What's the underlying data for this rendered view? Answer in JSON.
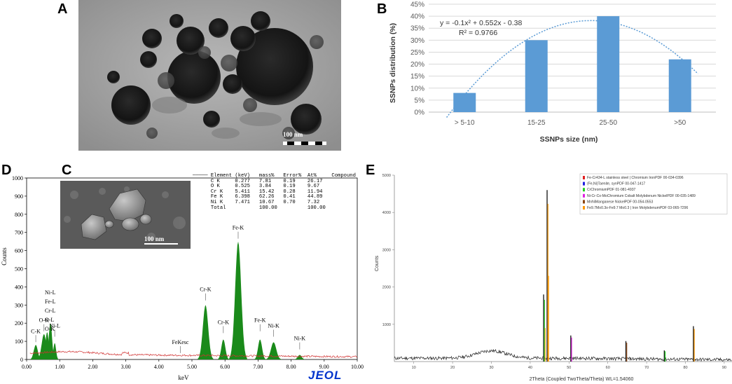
{
  "panels": {
    "a": "A",
    "b": "B",
    "c": "C",
    "d": "D",
    "e": "E"
  },
  "tem": {
    "scale_label": "100 nm"
  },
  "sem": {
    "scale_label": "100 nm"
  },
  "chart_data": [
    {
      "type": "bar",
      "panel": "B",
      "categories": [
        "> 5-10",
        "15-25",
        "25-50",
        ">50"
      ],
      "values": [
        8,
        30,
        40,
        22
      ],
      "ylabel": "SSNPs distribution (%)",
      "xlabel": "SSNPs size (nm)",
      "ylim": [
        0,
        45
      ],
      "yticks": [
        "0%",
        "5%",
        "10%",
        "15%",
        "20%",
        "25%",
        "30%",
        "35%",
        "40%",
        "45%"
      ],
      "trendline": {
        "equation": "y = -0.1x² + 0.552x - 0.38",
        "r2": "R² = 0.9766",
        "coefficients": [
          -0.1,
          0.552,
          -0.38
        ]
      },
      "grid": true,
      "bar_color": "#5b9bd5"
    },
    {
      "type": "line",
      "panel": "D",
      "xlabel": "keV",
      "ylabel": "Counts",
      "xlim": [
        0,
        10
      ],
      "ylim": [
        0,
        1000
      ],
      "xticks": [
        "0.00",
        "1.00",
        "2.00",
        "3.00",
        "4.00",
        "5.00",
        "6.00",
        "7.00",
        "8.00",
        "9.00",
        "10.00"
      ],
      "yticks": [
        "0",
        "100",
        "200",
        "300",
        "400",
        "500",
        "600",
        "700",
        "800",
        "900",
        "1000"
      ],
      "peaks": [
        {
          "label": "C-K",
          "x": 0.277,
          "y": 80
        },
        {
          "label": "O-K",
          "x": 0.525,
          "y": 140
        },
        {
          "label": "Ni-L",
          "x": 0.85,
          "y": 110
        },
        {
          "label": "Fe-K",
          "x": 6.398,
          "y": 650
        },
        {
          "label": "Cr-K",
          "x": 5.411,
          "y": 310
        },
        {
          "label": "Cr-K",
          "x": 5.95,
          "y": 130
        },
        {
          "label": "Fe-K",
          "x": 7.06,
          "y": 140
        },
        {
          "label": "Ni-K",
          "x": 7.47,
          "y": 110
        },
        {
          "label": "Ni-K",
          "x": 8.26,
          "y": 40
        },
        {
          "label": "FeKesc",
          "x": 4.65,
          "y": 20
        }
      ],
      "low_energy_stack_labels": [
        "Ni-L",
        "Fe-L",
        "Cr-L",
        "O-L",
        "O-K"
      ],
      "table": {
        "header": [
          "Element",
          "(keV)",
          "mass%",
          "Error%",
          "At%",
          "Compound"
        ],
        "rows": [
          [
            "C K",
            "0.277",
            "7.81",
            "0.19",
            "26.17",
            ""
          ],
          [
            "O K",
            "0.525",
            "3.84",
            "0.19",
            "9.67",
            ""
          ],
          [
            "Cr K",
            "5.411",
            "15.42",
            "0.28",
            "11.94",
            ""
          ],
          [
            "Fe K",
            "6.398",
            "62.26",
            "0.41",
            "44.89",
            ""
          ],
          [
            "Ni K",
            "7.471",
            "10.67",
            "0.70",
            "7.32",
            ""
          ],
          [
            "Total",
            "",
            "100.00",
            "",
            "100.00",
            ""
          ]
        ]
      },
      "brand": "JEOL"
    },
    {
      "type": "line",
      "panel": "E",
      "xlabel": "2Theta (Coupled TwoTheta/Theta) WL=1.54060",
      "ylabel": "Counts",
      "xlim": [
        5,
        92
      ],
      "ylim": [
        0,
        5000
      ],
      "xticks": [
        "10",
        "20",
        "30",
        "40",
        "50",
        "60",
        "70",
        "80",
        "90"
      ],
      "yticks": [
        "1000",
        "2000",
        "3000",
        "4000",
        "5000"
      ],
      "peaks": [
        {
          "x": 43.6,
          "y": 1800
        },
        {
          "x": 44.5,
          "y": 4600
        },
        {
          "x": 50.6,
          "y": 700
        },
        {
          "x": 64.8,
          "y": 550
        },
        {
          "x": 74.7,
          "y": 300
        },
        {
          "x": 82.2,
          "y": 950
        }
      ],
      "legend": [
        {
          "color": "#e02020",
          "text": "Fe-Cr434-L stainless steel | Chromium IronPDF 00-034-0396"
        },
        {
          "color": "#2020e0",
          "text": "(Fe,Ni)Taenite, synPDF 00-047-1417"
        },
        {
          "color": "#20d020",
          "text": "CrChromiumPDF 01-081-4937"
        },
        {
          "color": "#e020e0",
          "text": "Ni-Cr-Co-MoChromium Cobalt Molybdenum NickelPDF 00-035-1489"
        },
        {
          "color": "#8b4513",
          "text": "MnNiManganese NickelPDF 00-054-0553"
        },
        {
          "color": "#ff9900",
          "text": "Fe9.7Mo0.3o-Fe9.7 Mo0.3 | Iron MolybdenumPDF 03-065-7296"
        }
      ]
    }
  ]
}
